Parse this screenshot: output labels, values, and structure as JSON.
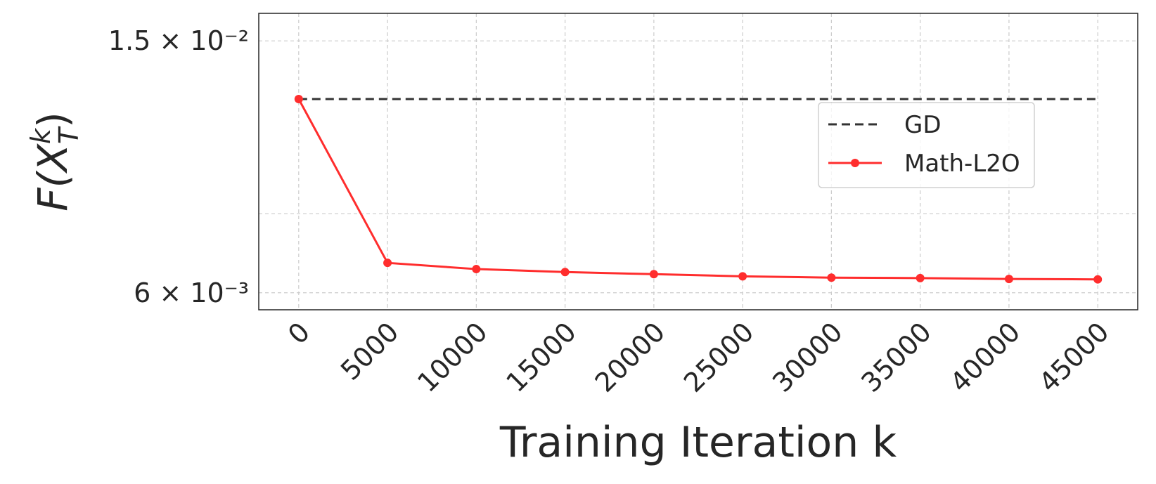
{
  "chart_data": {
    "type": "line",
    "ylabel": {
      "base": "F(X",
      "sup": "k",
      "sub": "T",
      "end": ")"
    },
    "xlabel": "Training Iteration k",
    "x": [
      0,
      5000,
      10000,
      15000,
      20000,
      25000,
      30000,
      35000,
      40000,
      45000
    ],
    "series": [
      {
        "name": "GD",
        "color": "#333333",
        "dash": true,
        "markers": false,
        "values": [
          0.01214,
          0.01214,
          0.01214,
          0.01214,
          0.01214,
          0.01214,
          0.01214,
          0.01214,
          0.01214,
          0.01214
        ]
      },
      {
        "name": "Math-L2O",
        "color": "#ff2d2d",
        "dash": false,
        "markers": true,
        "values": [
          0.01214,
          0.00669,
          0.00654,
          0.00647,
          0.00642,
          0.00637,
          0.00634,
          0.00633,
          0.00631,
          0.0063
        ]
      }
    ],
    "xlim": [
      -2250,
      47250
    ],
    "xticks": [
      0,
      5000,
      10000,
      15000,
      20000,
      25000,
      30000,
      35000,
      40000,
      45000
    ],
    "ylim": [
      0.00564,
      0.01658
    ],
    "log_y": true,
    "yticks": [
      {
        "value": 0.015,
        "label": "1.5 × 10⁻²"
      },
      {
        "value": 0.006,
        "label": "6 × 10⁻³"
      }
    ],
    "y_minor_grid": [
      0.008
    ],
    "grid": true,
    "legend": "upper right"
  }
}
